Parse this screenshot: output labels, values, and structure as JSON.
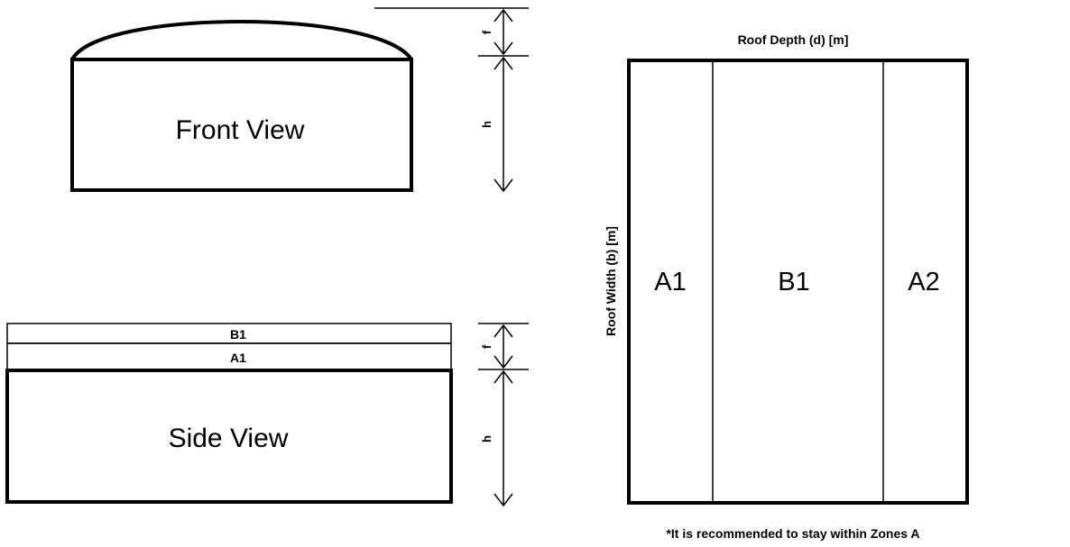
{
  "front_view": {
    "label": "Front View",
    "dim_rise": "f",
    "dim_height": "h"
  },
  "side_view": {
    "label": "Side View",
    "zone_top": "B1",
    "zone_bottom": "A1",
    "dim_rise": "f",
    "dim_height": "h"
  },
  "roof_plan": {
    "depth_label": "Roof Depth (d) [m]",
    "width_label": "Roof Width (b) [m]",
    "zones": [
      "A1",
      "B1",
      "A2"
    ],
    "note": "*It is recommended to stay within Zones A"
  }
}
